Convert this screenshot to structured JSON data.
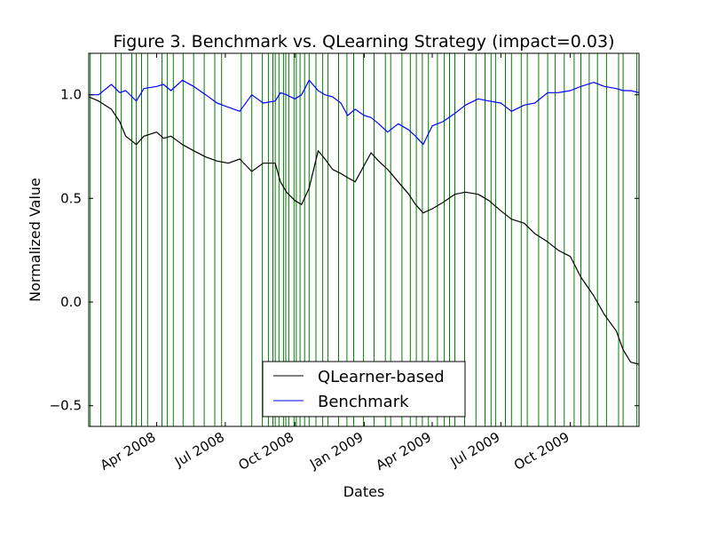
{
  "chart_data": {
    "type": "line",
    "title": "Figure 3. Benchmark vs. QLearning Strategy (impact=0.03)",
    "xlabel": "Dates",
    "ylabel": "Normalized Value",
    "xlim": [
      "2008-01-02",
      "2009-12-31"
    ],
    "ylim": [
      -0.6,
      1.2
    ],
    "y_ticks": [
      -0.5,
      0.0,
      0.5,
      1.0
    ],
    "y_tick_labels": [
      "−0.5",
      "0.0",
      "0.5",
      "1.0"
    ],
    "x_ticks": [
      "2008-04-01",
      "2008-07-01",
      "2008-10-01",
      "2009-01-01",
      "2009-04-01",
      "2009-07-01",
      "2009-10-01"
    ],
    "x_tick_labels": [
      "Apr 2008",
      "Jul 2008",
      "Oct 2008",
      "Jan 2009",
      "Apr 2009",
      "Jul 2009",
      "Oct 2009"
    ],
    "grid": false,
    "legend_position": "lower-center",
    "series": [
      {
        "name": "QLearner-based",
        "color": "#000000",
        "x": [
          "2008-01-02",
          "2008-01-15",
          "2008-02-01",
          "2008-02-12",
          "2008-02-20",
          "2008-03-05",
          "2008-03-15",
          "2008-04-01",
          "2008-04-10",
          "2008-04-20",
          "2008-05-05",
          "2008-05-20",
          "2008-06-05",
          "2008-06-20",
          "2008-07-05",
          "2008-07-20",
          "2008-08-05",
          "2008-08-20",
          "2008-09-05",
          "2008-09-12",
          "2008-09-20",
          "2008-10-01",
          "2008-10-10",
          "2008-10-20",
          "2008-11-01",
          "2008-11-10",
          "2008-11-20",
          "2008-12-01",
          "2008-12-10",
          "2008-12-20",
          "2009-01-01",
          "2009-01-10",
          "2009-01-20",
          "2009-02-01",
          "2009-02-15",
          "2009-03-01",
          "2009-03-10",
          "2009-03-20",
          "2009-04-01",
          "2009-04-15",
          "2009-05-01",
          "2009-05-15",
          "2009-06-01",
          "2009-06-15",
          "2009-07-01",
          "2009-07-15",
          "2009-08-01",
          "2009-08-15",
          "2009-09-01",
          "2009-09-15",
          "2009-10-01",
          "2009-10-15",
          "2009-11-01",
          "2009-11-15",
          "2009-12-01",
          "2009-12-10",
          "2009-12-20",
          "2009-12-31"
        ],
        "values": [
          0.99,
          0.97,
          0.93,
          0.87,
          0.8,
          0.76,
          0.8,
          0.82,
          0.79,
          0.8,
          0.76,
          0.73,
          0.7,
          0.68,
          0.67,
          0.69,
          0.63,
          0.67,
          0.67,
          0.58,
          0.53,
          0.49,
          0.47,
          0.55,
          0.73,
          0.69,
          0.64,
          0.62,
          0.6,
          0.58,
          0.66,
          0.72,
          0.68,
          0.64,
          0.58,
          0.52,
          0.47,
          0.43,
          0.45,
          0.48,
          0.52,
          0.53,
          0.52,
          0.49,
          0.44,
          0.4,
          0.38,
          0.33,
          0.29,
          0.25,
          0.22,
          0.12,
          0.03,
          -0.06,
          -0.14,
          -0.23,
          -0.29,
          -0.3
        ]
      },
      {
        "name": "Benchmark",
        "color": "#0000ff",
        "x": [
          "2008-01-02",
          "2008-01-15",
          "2008-02-01",
          "2008-02-12",
          "2008-02-20",
          "2008-03-05",
          "2008-03-15",
          "2008-04-01",
          "2008-04-10",
          "2008-04-20",
          "2008-05-05",
          "2008-05-20",
          "2008-06-05",
          "2008-06-20",
          "2008-07-05",
          "2008-07-20",
          "2008-08-05",
          "2008-08-20",
          "2008-09-05",
          "2008-09-12",
          "2008-09-20",
          "2008-10-01",
          "2008-10-10",
          "2008-10-20",
          "2008-11-01",
          "2008-11-10",
          "2008-11-20",
          "2008-12-01",
          "2008-12-10",
          "2008-12-20",
          "2009-01-01",
          "2009-01-10",
          "2009-01-20",
          "2009-02-01",
          "2009-02-15",
          "2009-03-01",
          "2009-03-10",
          "2009-03-20",
          "2009-04-01",
          "2009-04-15",
          "2009-05-01",
          "2009-05-15",
          "2009-06-01",
          "2009-06-15",
          "2009-07-01",
          "2009-07-15",
          "2009-08-01",
          "2009-08-15",
          "2009-09-01",
          "2009-09-15",
          "2009-10-01",
          "2009-10-15",
          "2009-11-01",
          "2009-11-15",
          "2009-12-01",
          "2009-12-10",
          "2009-12-20",
          "2009-12-31"
        ],
        "values": [
          1.0,
          1.0,
          1.05,
          1.01,
          1.02,
          0.97,
          1.03,
          1.04,
          1.05,
          1.02,
          1.07,
          1.04,
          1.0,
          0.96,
          0.94,
          0.92,
          1.0,
          0.96,
          0.97,
          1.01,
          1.0,
          0.98,
          1.0,
          1.07,
          1.02,
          1.0,
          0.99,
          0.96,
          0.9,
          0.93,
          0.9,
          0.89,
          0.86,
          0.82,
          0.86,
          0.83,
          0.8,
          0.76,
          0.85,
          0.87,
          0.91,
          0.95,
          0.98,
          0.97,
          0.96,
          0.92,
          0.95,
          0.96,
          1.01,
          1.01,
          1.02,
          1.04,
          1.06,
          1.04,
          1.03,
          1.02,
          1.02,
          1.01
        ]
      }
    ],
    "vertical_lines": {
      "color": "#008000",
      "dates": [
        "2008-01-04",
        "2008-01-18",
        "2008-02-07",
        "2008-02-14",
        "2008-02-28",
        "2008-03-05",
        "2008-03-12",
        "2008-03-20",
        "2008-04-08",
        "2008-04-15",
        "2008-04-23",
        "2008-05-06",
        "2008-05-20",
        "2008-06-03",
        "2008-06-17",
        "2008-06-26",
        "2008-07-22",
        "2008-08-05",
        "2008-08-19",
        "2008-08-27",
        "2008-09-02",
        "2008-09-05",
        "2008-09-10",
        "2008-09-16",
        "2008-09-19",
        "2008-09-23",
        "2008-09-30",
        "2008-10-03",
        "2008-10-08",
        "2008-10-14",
        "2008-10-20",
        "2008-10-29",
        "2008-11-07",
        "2008-11-14",
        "2008-11-28",
        "2008-12-09",
        "2008-12-18",
        "2008-12-31",
        "2009-01-14",
        "2009-01-29",
        "2009-02-05",
        "2009-02-20",
        "2009-03-03",
        "2009-03-11",
        "2009-03-19",
        "2009-03-27",
        "2009-04-08",
        "2009-04-17",
        "2009-04-24",
        "2009-05-01",
        "2009-05-14",
        "2009-05-29",
        "2009-06-10",
        "2009-06-18",
        "2009-06-24",
        "2009-07-07",
        "2009-07-15",
        "2009-07-28",
        "2009-08-05",
        "2009-08-20",
        "2009-09-01",
        "2009-09-11",
        "2009-09-23",
        "2009-10-06",
        "2009-10-15",
        "2009-10-26",
        "2009-11-06",
        "2009-11-18",
        "2009-12-04",
        "2009-12-10",
        "2009-12-28"
      ]
    }
  }
}
